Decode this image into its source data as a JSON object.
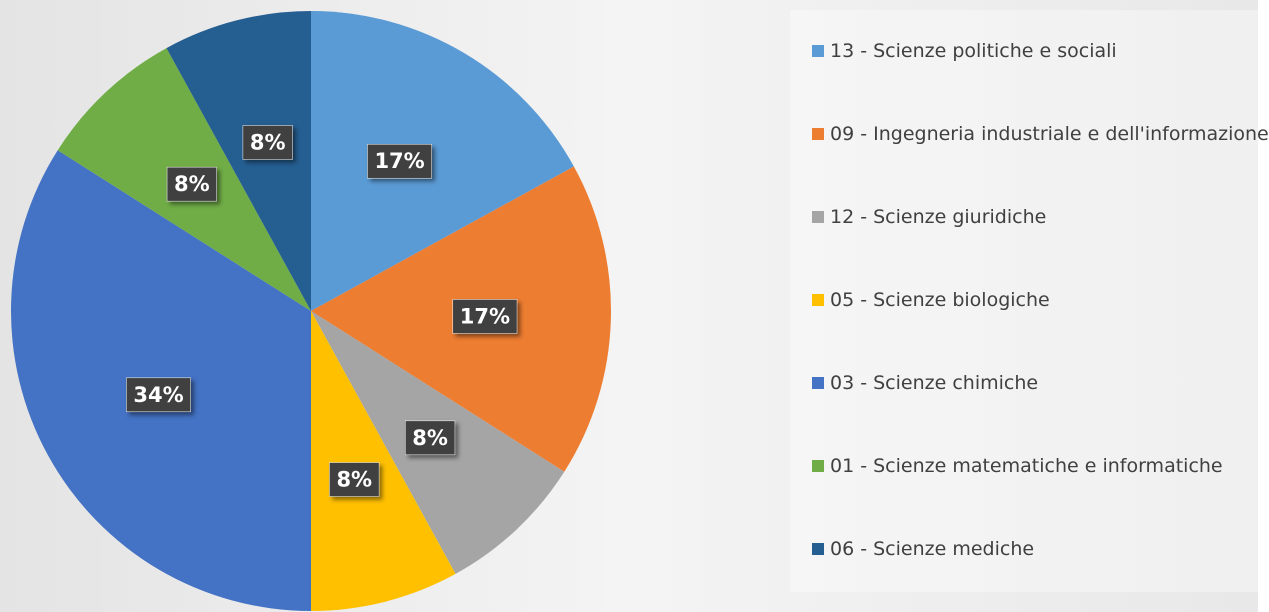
{
  "chart_data": {
    "type": "pie",
    "categories": [
      "13 - Scienze politiche e sociali",
      "09 - Ingegneria industriale e dell'informazione",
      "12 - Scienze giuridiche",
      "05 - Scienze biologiche",
      "03 - Scienze chimiche",
      "01 - Scienze matematiche e informatiche",
      "06 - Scienze mediche"
    ],
    "values": [
      17,
      17,
      8,
      8,
      34,
      8,
      8
    ],
    "value_labels": [
      "17%",
      "17%",
      "8%",
      "8%",
      "34%",
      "8%",
      "8%"
    ],
    "colors": [
      "#5b9bd5",
      "#ed7d31",
      "#a5a5a5",
      "#ffc000",
      "#4472c4",
      "#70ad47",
      "#255e91"
    ],
    "legend": "right"
  }
}
